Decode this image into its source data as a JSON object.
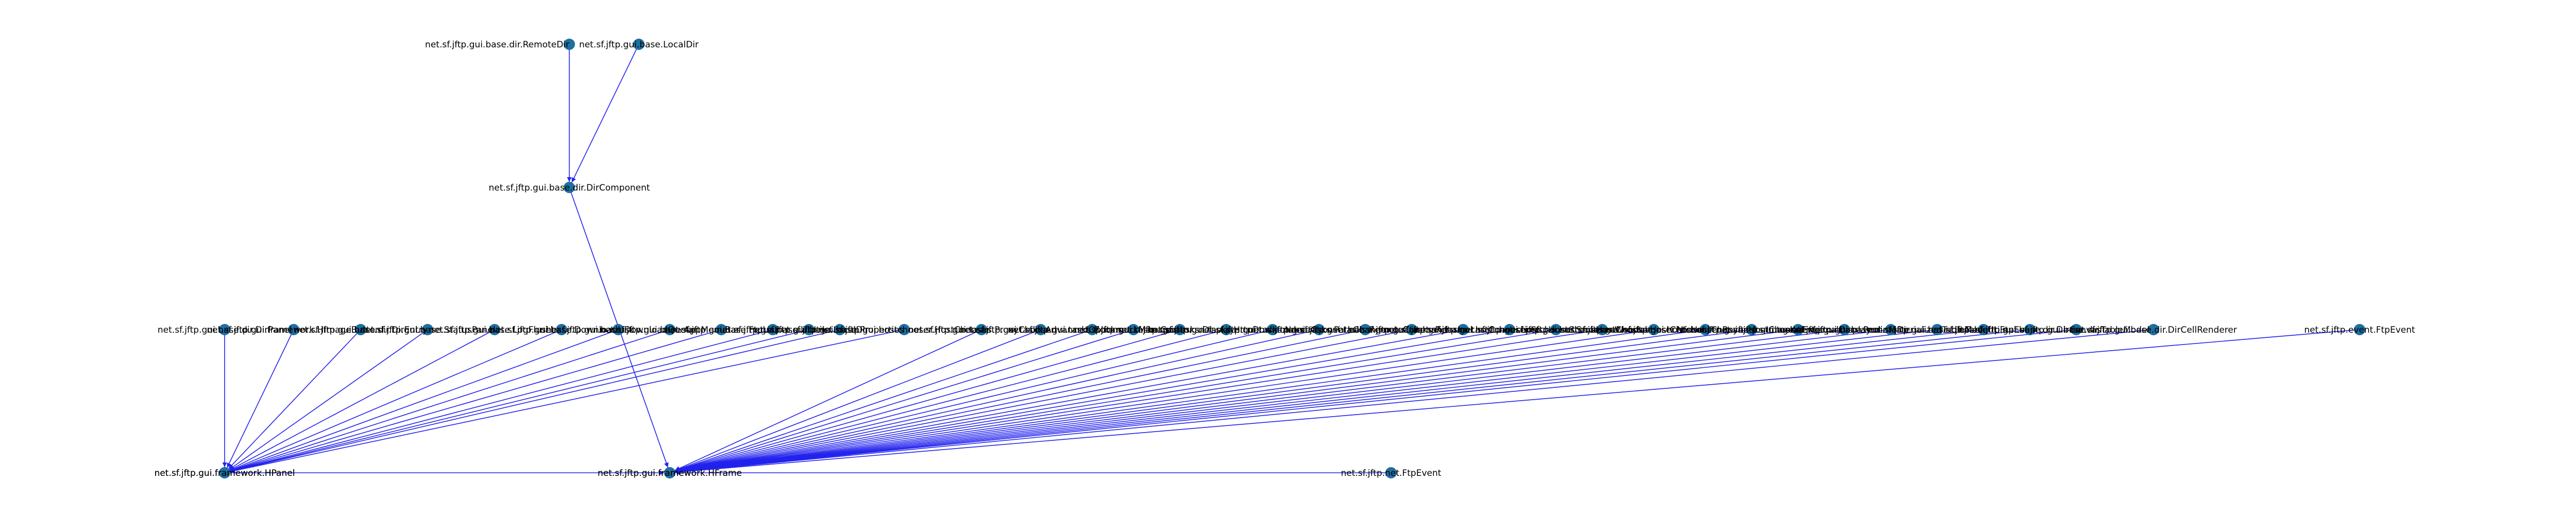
{
  "graph": {
    "nodes": [
      {
        "id": "n1",
        "label": "net.sf.jftp.gui.base.dir.RemoteDir"
      },
      {
        "id": "n2",
        "label": "net.sf.jftp.gui.base.LocalDir"
      },
      {
        "id": "n3",
        "label": "net.sf.jftp.gui.base.dir.DirComponent"
      },
      {
        "id": "n4",
        "label": "net.sf.jftp.gui.framework.HPanel"
      },
      {
        "id": "n5",
        "label": "net.sf.jftp.gui.framework.HFrame"
      },
      {
        "id": "n6",
        "label": "net.sf.jftp.gui.base.dir.DirPanel"
      },
      {
        "id": "n7",
        "label": "net.sf.jftp.net.FtpEvent"
      },
      {
        "id": "n8",
        "label": "net.sf.jftp.gui.framework.HImageButton"
      },
      {
        "id": "n9",
        "label": "net.sf.jftp.gui.base.dir.DirEntry"
      },
      {
        "id": "n10",
        "label": "net.sf.jftp.gui.base.StatusPanel"
      },
      {
        "id": "n11",
        "label": "net.sf.jftp.gui.base.LogFlusher"
      },
      {
        "id": "n12",
        "label": "net.sf.jftp.gui.base.DownloadList"
      },
      {
        "id": "n13",
        "label": "net.sf.jftp.gui.base.DownloadQueue"
      },
      {
        "id": "n14",
        "label": "net.sf.jftp.gui.base.AppMenuBar"
      },
      {
        "id": "n15",
        "label": "net.sf.jftp.gui.base.FtpList"
      },
      {
        "id": "n16",
        "label": "net.sf.jftp.gui.base.UIUtils"
      },
      {
        "id": "n17",
        "label": "net.sf.jftp.gui.base.LocalDir"
      },
      {
        "id": "n18",
        "label": "net.sf.jftp.gui.base.Properties"
      },
      {
        "id": "n19",
        "label": "net.sf.jftp.gui.hostchooser.HostChooser"
      },
      {
        "id": "n20",
        "label": "net.sf.jftp.gui.tasks.ProxyChooser"
      },
      {
        "id": "n21",
        "label": "net.sf.jftp.gui.tasks.AdvancedOptions"
      },
      {
        "id": "n22",
        "label": "net.sf.jftp.gui.tasks.BookmarkManager"
      },
      {
        "id": "n23",
        "label": "net.sf.jftp.gui.tasks.Creator"
      },
      {
        "id": "n24",
        "label": "net.sf.jftp.gui.tasks.Displayer"
      },
      {
        "id": "n25",
        "label": "net.sf.jftp.gui.tasks.HttpDownloader"
      },
      {
        "id": "n26",
        "label": "net.sf.jftp.gui.tasks.NameChooser"
      },
      {
        "id": "n27",
        "label": "net.sf.jftp.gui.tasks.PathChanger"
      },
      {
        "id": "n28",
        "label": "net.sf.jftp.gui.tasks.RemoteCommand"
      },
      {
        "id": "n29",
        "label": "net.sf.jftp.gui.tasks.Renamer"
      },
      {
        "id": "n30",
        "label": "net.sf.jftp.gui.tasks.LastConnections"
      },
      {
        "id": "n31",
        "label": "net.sf.jftp.gui.hostchooser.SftpHostChooser"
      },
      {
        "id": "n32",
        "label": "net.sf.jftp.gui.hostchooser.SmbHostChooser"
      },
      {
        "id": "n33",
        "label": "net.sf.jftp.gui.hostchooser.WebdavHostChooser"
      },
      {
        "id": "n34",
        "label": "net.sf.jftp.gui.hostchooser.NfsHostChooser"
      },
      {
        "id": "n35",
        "label": "net.sf.jftp.gui.hostchooser.RsyncHostChooser"
      },
      {
        "id": "n36",
        "label": "net.sf.jftp.gui.tasks.ImageViewer"
      },
      {
        "id": "n37",
        "label": "net.sf.jftp.gui.tasks.ExternalDisplayer"
      },
      {
        "id": "n38",
        "label": "net.sf.jftp.gui.base.RemoteDir"
      },
      {
        "id": "n39",
        "label": "net.sf.jftp.gui.base.dir.MaterializedTableModel"
      },
      {
        "id": "n40",
        "label": "net.sf.jftp.gui.base.dir.TableUtils"
      },
      {
        "id": "n41",
        "label": "net.sf.jftp.event.FtpEvent"
      },
      {
        "id": "n42",
        "label": "net.sf.jftp.gui.base.dir.DirCanvas"
      },
      {
        "id": "n43",
        "label": "net.sf.jftp.gui.base.dir.TableModel"
      },
      {
        "id": "n44",
        "label": "net.sf.jftp.gui.framework.HPanel"
      },
      {
        "id": "n45",
        "label": "net.sf.jftp.gui.framework.HFrame"
      },
      {
        "id": "n46",
        "label": "net.sf.jftp.gui.base.dir.DirCellRenderer"
      },
      {
        "id": "n47",
        "label": "net.sf.jftp.event.FtpEvent"
      }
    ],
    "edges": [
      {
        "from": "n1",
        "to": "n3"
      },
      {
        "from": "n2",
        "to": "n3"
      },
      {
        "from": "n3",
        "to": "n5"
      },
      {
        "from": "n6",
        "to": "n44"
      },
      {
        "from": "n8",
        "to": "n44"
      },
      {
        "from": "n9",
        "to": "n44"
      },
      {
        "from": "n10",
        "to": "n44"
      },
      {
        "from": "n11",
        "to": "n44"
      },
      {
        "from": "n12",
        "to": "n44"
      },
      {
        "from": "n13",
        "to": "n44"
      },
      {
        "from": "n14",
        "to": "n44"
      },
      {
        "from": "n15",
        "to": "n44"
      },
      {
        "from": "n16",
        "to": "n44"
      },
      {
        "from": "n17",
        "to": "n44"
      },
      {
        "from": "n18",
        "to": "n44"
      },
      {
        "from": "n19",
        "to": "n44"
      },
      {
        "from": "n20",
        "to": "n45"
      },
      {
        "from": "n21",
        "to": "n45"
      },
      {
        "from": "n22",
        "to": "n45"
      },
      {
        "from": "n23",
        "to": "n45"
      },
      {
        "from": "n24",
        "to": "n45"
      },
      {
        "from": "n25",
        "to": "n45"
      },
      {
        "from": "n26",
        "to": "n45"
      },
      {
        "from": "n27",
        "to": "n45"
      },
      {
        "from": "n28",
        "to": "n45"
      },
      {
        "from": "n29",
        "to": "n45"
      },
      {
        "from": "n30",
        "to": "n45"
      },
      {
        "from": "n31",
        "to": "n45"
      },
      {
        "from": "n32",
        "to": "n45"
      },
      {
        "from": "n33",
        "to": "n45"
      },
      {
        "from": "n34",
        "to": "n45"
      },
      {
        "from": "n35",
        "to": "n45"
      },
      {
        "from": "n36",
        "to": "n45"
      },
      {
        "from": "n37",
        "to": "n45"
      },
      {
        "from": "n38",
        "to": "n45"
      },
      {
        "from": "n39",
        "to": "n45"
      },
      {
        "from": "n40",
        "to": "n45"
      },
      {
        "from": "n41",
        "to": "n45"
      },
      {
        "from": "n42",
        "to": "n45"
      },
      {
        "from": "n43",
        "to": "n45"
      },
      {
        "from": "n46",
        "to": "n45"
      },
      {
        "from": "n47",
        "to": "n45"
      },
      {
        "from": "n4",
        "to": "n45"
      },
      {
        "from": "n7",
        "to": "n45"
      }
    ]
  },
  "colors": {
    "edge": "#2222ee",
    "node": "#1f6f9f"
  }
}
